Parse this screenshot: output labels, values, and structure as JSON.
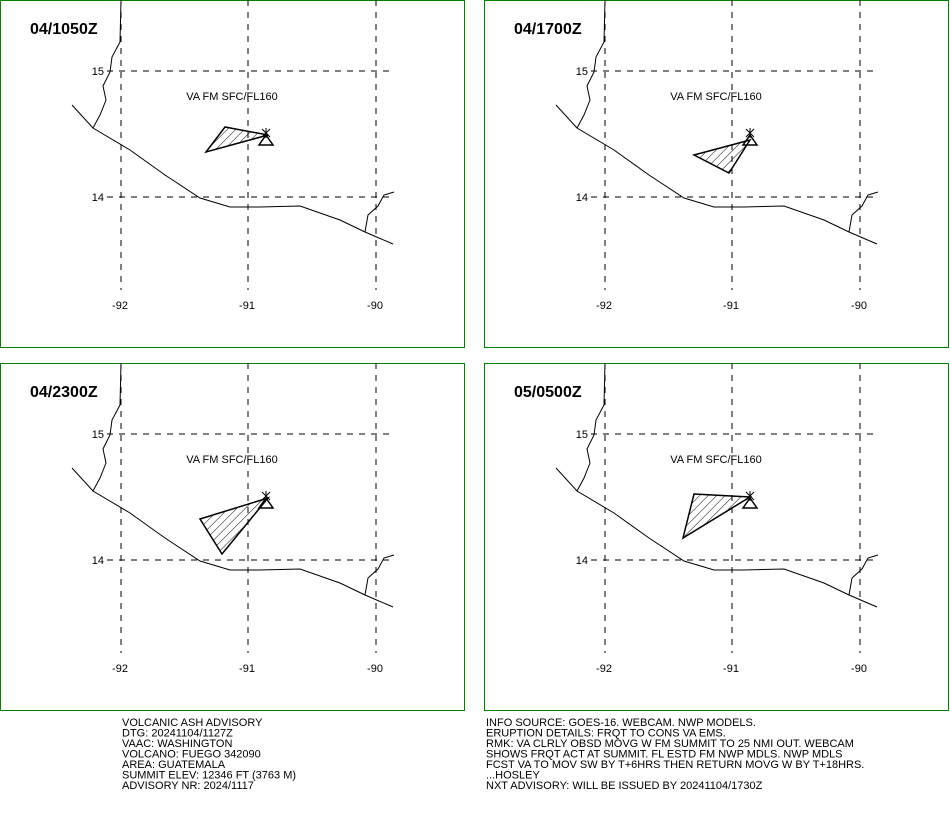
{
  "panels": [
    {
      "time": "04/1050Z",
      "label": "VA FM SFC/FL160"
    },
    {
      "time": "04/1700Z",
      "label": "VA FM SFC/FL160"
    },
    {
      "time": "04/2300Z",
      "label": "VA FM SFC/FL160"
    },
    {
      "time": "05/0500Z",
      "label": "VA FM SFC/FL160"
    }
  ],
  "lon_labels": [
    "-92",
    "-91",
    "-90"
  ],
  "lat_labels": [
    "15",
    "14"
  ],
  "advisory_left": [
    "VOLCANIC ASH ADVISORY",
    "DTG: 20241104/1127Z",
    "VAAC: WASHINGTON",
    "VOLCANO: FUEGO 342090",
    "AREA: GUATEMALA",
    "SUMMIT ELEV: 12346 FT (3763 M)",
    "ADVISORY NR: 2024/1117"
  ],
  "advisory_right": [
    "INFO SOURCE: GOES-16. WEBCAM. NWP MODELS.",
    "ERUPTION DETAILS: FRQT TO CONS VA EMS.",
    "RMK: VA CLRLY OBSD MOVG W FM SUMMIT TO 25 NMI OUT. WEBCAM",
    "SHOWS FRQT ACT AT SUMMIT. FL ESTD FM NWP MDLS. NWP MDLS",
    "FCST VA TO MOV SW BY T+6HRS THEN RETURN MOVG W BY T+18HRS.",
    "...HOSLEY",
    "NXT ADVISORY: WILL BE ISSUED BY 20241104/1730Z"
  ]
}
